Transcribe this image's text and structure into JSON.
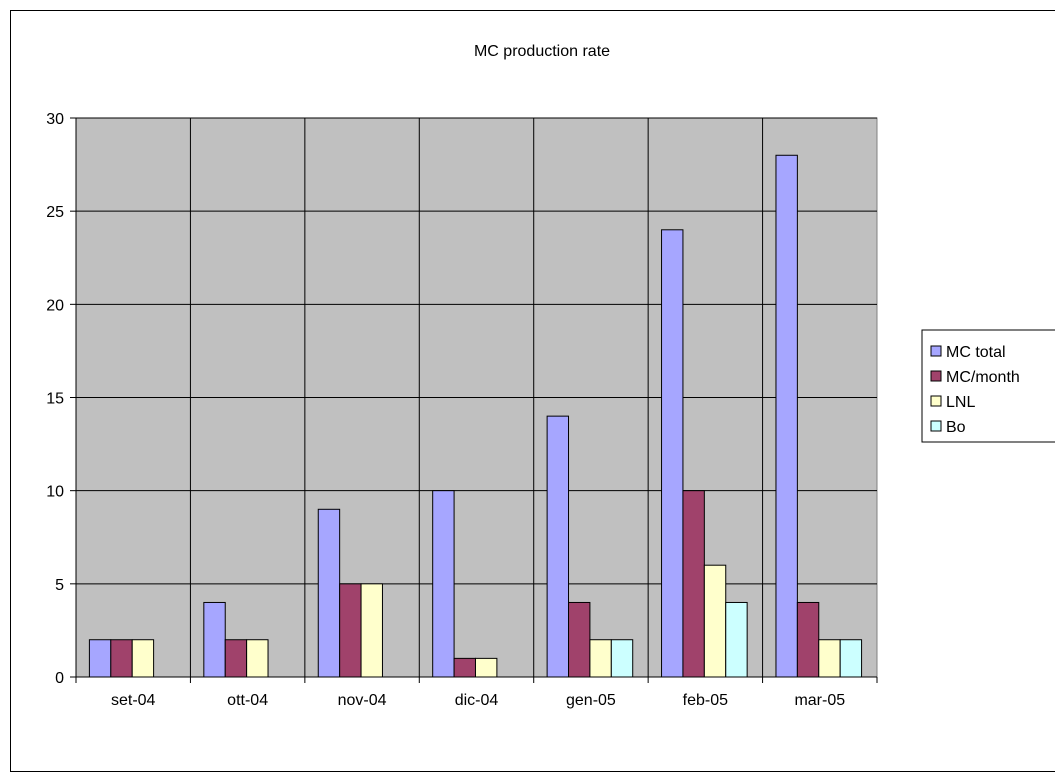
{
  "chart_data": {
    "type": "bar",
    "title": "MC production rate",
    "xlabel": "",
    "ylabel": "",
    "categories": [
      "set-04",
      "ott-04",
      "nov-04",
      "dic-04",
      "gen-05",
      "feb-05",
      "mar-05"
    ],
    "series": [
      {
        "name": "MC total",
        "values": [
          2,
          4,
          9,
          10,
          14,
          24,
          28
        ],
        "color": "#a6a6ff"
      },
      {
        "name": "MC/month",
        "values": [
          2,
          2,
          5,
          1,
          4,
          10,
          4
        ],
        "color": "#a0426b"
      },
      {
        "name": "LNL",
        "values": [
          2,
          2,
          5,
          1,
          2,
          6,
          2
        ],
        "color": "#ffffcc"
      },
      {
        "name": "Bo",
        "values": [
          0,
          0,
          0,
          0,
          2,
          4,
          2
        ],
        "color": "#ccffff"
      }
    ],
    "ylim": [
      0,
      30
    ],
    "yticks": [
      0,
      5,
      10,
      15,
      20,
      25,
      30
    ],
    "grid": true,
    "plot_background": "#c0c0c0",
    "legend_position": "right"
  }
}
